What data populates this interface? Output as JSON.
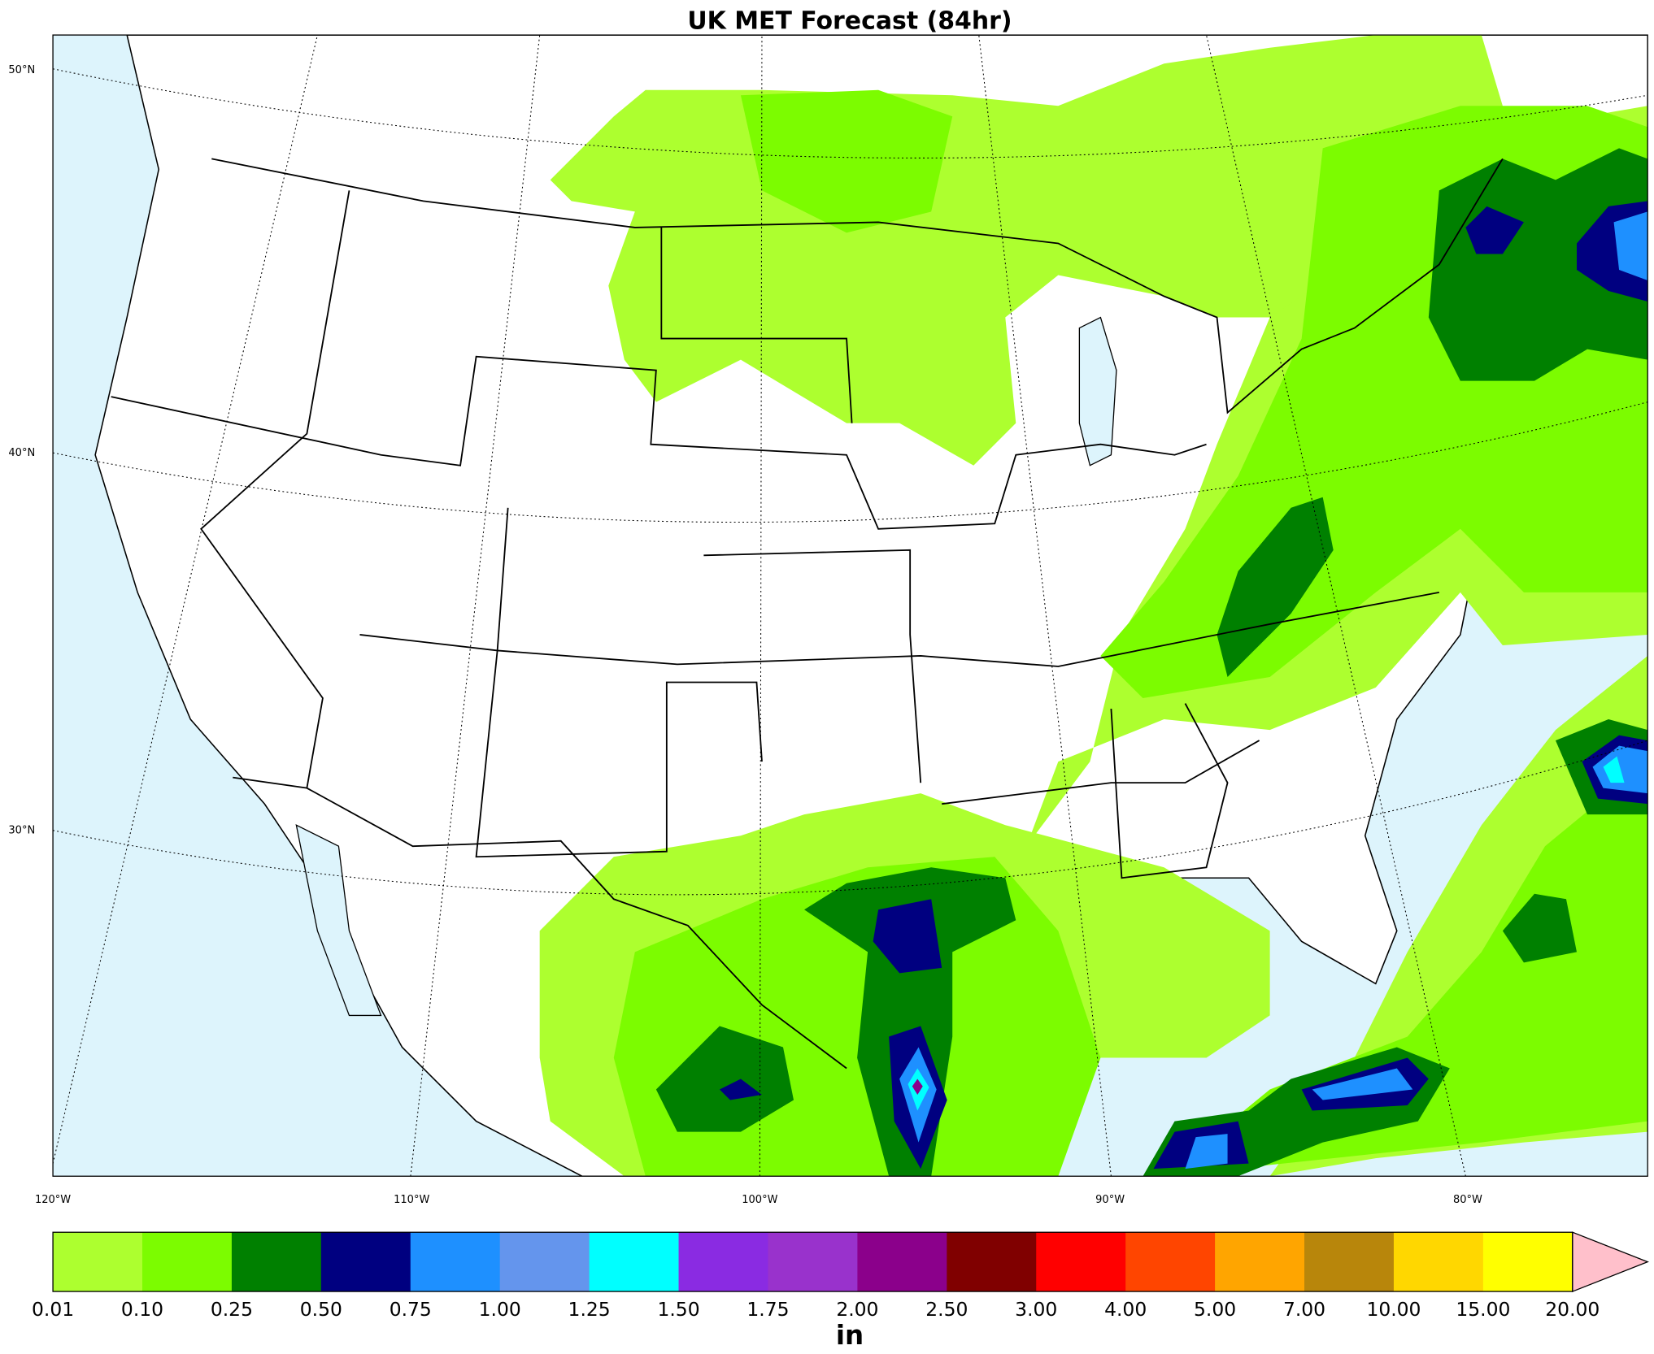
{
  "title": "UK MET Forecast (84hr)",
  "latitude_labels": [
    "50°N",
    "40°N",
    "30°N"
  ],
  "longitude_labels": [
    "120°W",
    "110°W",
    "100°W",
    "90°W",
    "80°W"
  ],
  "colorbar": {
    "levels": [
      "0.01",
      "0.10",
      "0.25",
      "0.50",
      "0.75",
      "1.00",
      "1.25",
      "1.50",
      "1.75",
      "2.00",
      "2.50",
      "3.00",
      "4.00",
      "5.00",
      "7.00",
      "10.00",
      "15.00",
      "20.00"
    ],
    "colors": [
      "#adff2f",
      "#7cfc00",
      "#008000",
      "#000080",
      "#1e90ff",
      "#6495ed",
      "#00ffff",
      "#8a2be2",
      "#9932cc",
      "#8b008b",
      "#800000",
      "#ff0000",
      "#ff4500",
      "#ffa500",
      "#b8860b",
      "#ffd700",
      "#ffff00"
    ],
    "extend_color": "#ffc0cb",
    "units": "in"
  }
}
